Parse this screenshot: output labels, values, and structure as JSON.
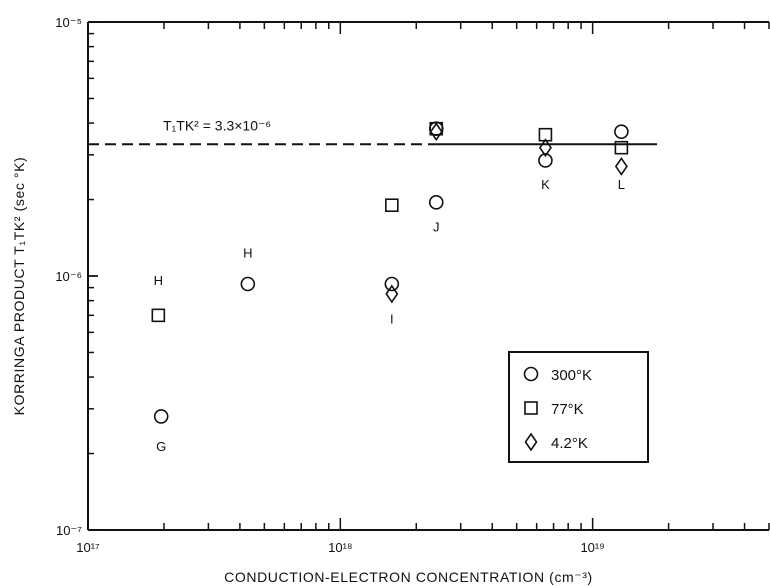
{
  "chart_data": {
    "type": "scatter",
    "xlabel": "CONDUCTION-ELECTRON CONCENTRATION (cm⁻³)",
    "ylabel": "KORRINGA PRODUCT T₁TK² (sec °K)",
    "x_scale": "log",
    "y_scale": "log",
    "xlim": [
      1e+17,
      5e+19
    ],
    "ylim": [
      1e-07,
      1e-05
    ],
    "x_ticks": [
      {
        "value": 1e+17,
        "label": "10¹⁷"
      },
      {
        "value": 1e+18,
        "label": "10¹⁸"
      },
      {
        "value": 1e+19,
        "label": "10¹⁹"
      }
    ],
    "y_ticks": [
      {
        "value": 1e-07,
        "label": "10⁻⁷"
      },
      {
        "value": 1e-06,
        "label": "10⁻⁶"
      },
      {
        "value": 1e-05,
        "label": "10⁻⁵"
      }
    ],
    "grid": false,
    "legend_position": "bottom-right",
    "reference_line": {
      "y": 3.3e-06,
      "label": "T₁TK² = 3.3×10⁻⁶"
    },
    "series": [
      {
        "name": "300°K",
        "marker": "circle",
        "points": [
          {
            "x": 1.95e+17,
            "y": 2.8e-07
          },
          {
            "x": 4.3e+17,
            "y": 9.3e-07
          },
          {
            "x": 1.6e+18,
            "y": 9.3e-07
          },
          {
            "x": 2.4e+18,
            "y": 1.95e-06
          },
          {
            "x": 2.4e+18,
            "y": 3.8e-06
          },
          {
            "x": 6.5e+18,
            "y": 2.85e-06
          },
          {
            "x": 1.3e+19,
            "y": 3.7e-06
          }
        ]
      },
      {
        "name": "77°K",
        "marker": "square",
        "points": [
          {
            "x": 1.9e+17,
            "y": 7e-07
          },
          {
            "x": 1.6e+18,
            "y": 1.9e-06
          },
          {
            "x": 2.4e+18,
            "y": 3.8e-06
          },
          {
            "x": 6.5e+18,
            "y": 3.6e-06
          },
          {
            "x": 1.3e+19,
            "y": 3.2e-06
          }
        ]
      },
      {
        "name": "4.2°K",
        "marker": "diamond",
        "points": [
          {
            "x": 1.6e+18,
            "y": 8.5e-07
          },
          {
            "x": 2.4e+18,
            "y": 3.7e-06
          },
          {
            "x": 6.5e+18,
            "y": 3.2e-06
          },
          {
            "x": 1.3e+19,
            "y": 2.7e-06
          }
        ]
      }
    ],
    "annotations": [
      {
        "text": "G",
        "x": 1.95e+17,
        "y": 2.05e-07
      },
      {
        "text": "H",
        "x": 1.9e+17,
        "y": 9.2e-07
      },
      {
        "text": "H",
        "x": 4.3e+17,
        "y": 1.18e-06
      },
      {
        "text": "I",
        "x": 1.6e+18,
        "y": 6.5e-07
      },
      {
        "text": "J",
        "x": 2.4e+18,
        "y": 1.5e-06
      },
      {
        "text": "K",
        "x": 6.5e+18,
        "y": 2.2e-06
      },
      {
        "text": "L",
        "x": 1.3e+19,
        "y": 2.2e-06
      }
    ]
  }
}
